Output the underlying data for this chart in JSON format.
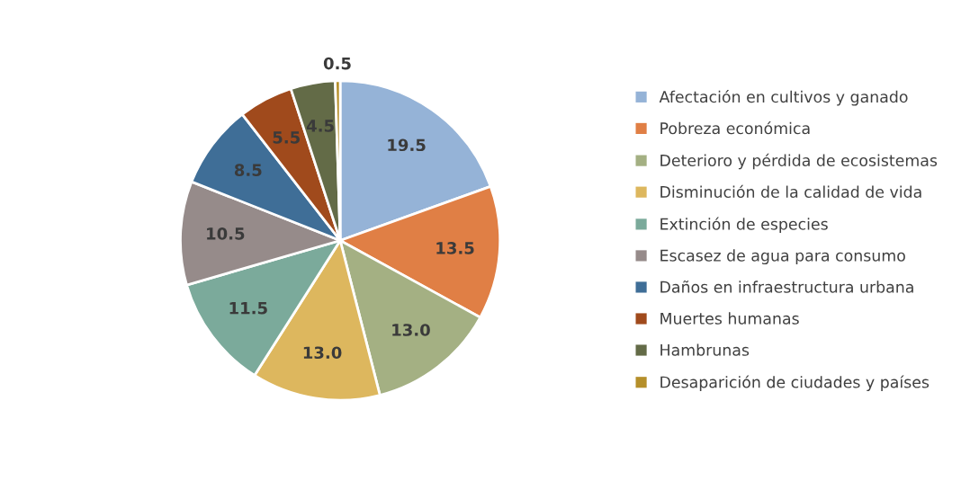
{
  "chart_data": {
    "type": "pie",
    "categories": [
      "Afectación en cultivos y ganado",
      "Pobreza económica",
      "Deterioro y pérdida de ecosistemas",
      "Disminución de la calidad de vida",
      "Extinción de especies",
      "Escasez de agua para consumo",
      "Daños en infraestructura urbana",
      "Muertes humanas",
      "Hambrunas",
      "Desaparición de ciudades y países"
    ],
    "values": [
      19.5,
      13.5,
      13.0,
      13.0,
      11.5,
      10.5,
      8.5,
      5.5,
      4.5,
      0.5
    ],
    "value_labels": [
      "19.5",
      "13.5",
      "13.0",
      "13.0",
      "11.5",
      "10.5",
      "8.5",
      "5.5",
      "4.5",
      "0.5"
    ],
    "colors": [
      "#95b3d7",
      "#e07f45",
      "#a4b083",
      "#ddb75e",
      "#7baa9b",
      "#968b8a",
      "#3f6e97",
      "#a04a1c",
      "#636b47",
      "#b58f2a"
    ],
    "legend": "right"
  }
}
